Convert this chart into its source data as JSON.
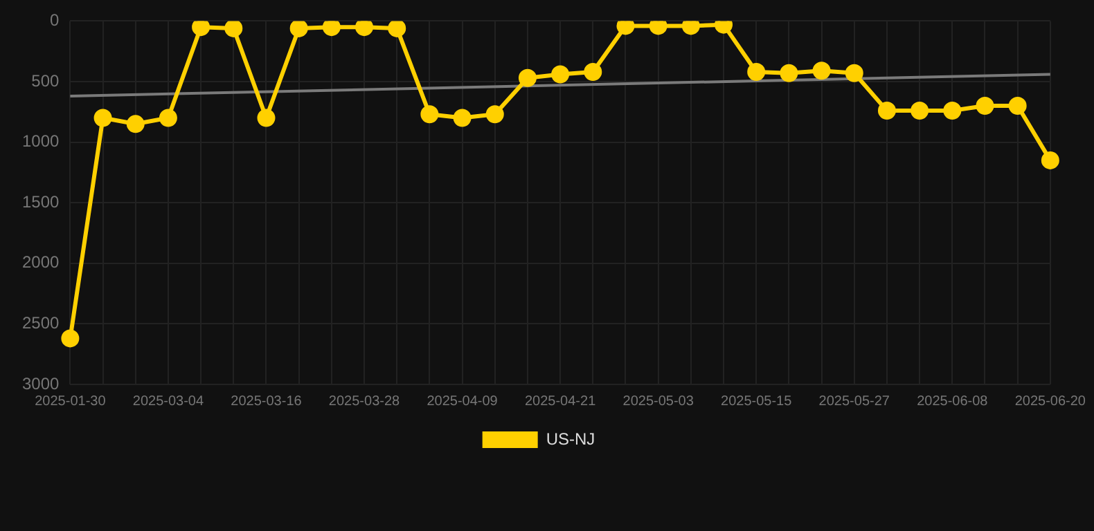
{
  "chart_data": {
    "type": "line",
    "categories": [
      "2025-01-30",
      null,
      null,
      "2025-03-04",
      null,
      null,
      "2025-03-16",
      null,
      null,
      "2025-03-28",
      null,
      null,
      "2025-04-09",
      null,
      null,
      "2025-04-21",
      null,
      null,
      "2025-05-03",
      null,
      null,
      "2025-05-15",
      null,
      null,
      "2025-05-27",
      null,
      null,
      "2025-06-08",
      null,
      null,
      "2025-06-20"
    ],
    "series": [
      {
        "name": "US-NJ",
        "color": "#ffd000",
        "marker": "circle",
        "values": [
          2620,
          800,
          850,
          800,
          50,
          60,
          800,
          60,
          50,
          50,
          60,
          770,
          800,
          770,
          470,
          440,
          420,
          40,
          40,
          40,
          30,
          420,
          430,
          410,
          430,
          740,
          740,
          740,
          700,
          700,
          1150
        ]
      },
      {
        "color": "#7a7a7a",
        "marker": "none",
        "values": [
          620,
          null,
          null,
          null,
          null,
          null,
          null,
          null,
          null,
          null,
          null,
          null,
          null,
          null,
          null,
          null,
          null,
          null,
          null,
          null,
          null,
          null,
          null,
          null,
          null,
          null,
          null,
          null,
          null,
          null,
          440
        ]
      }
    ],
    "ylim": [
      3000,
      0
    ],
    "yticks": [
      0,
      500,
      1000,
      1500,
      2000,
      2500,
      3000
    ],
    "grid": true,
    "legend": "bottom"
  }
}
